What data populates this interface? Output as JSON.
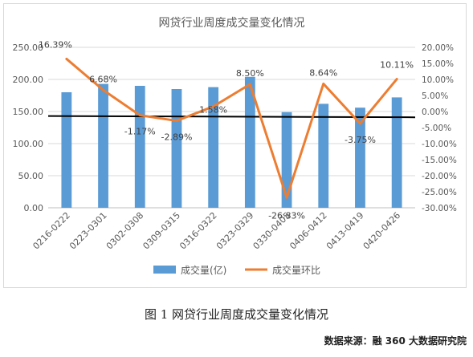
{
  "chart_data": {
    "type": "bar",
    "title": "网贷行业周度成交量变化情况",
    "categories": [
      "0216-0222",
      "0223-0301",
      "0302-0308",
      "0309-0315",
      "0316-0322",
      "0323-0329",
      "0330-0405",
      "0406-0412",
      "0413-0419",
      "0420-0426"
    ],
    "series": [
      {
        "name": "成交量(亿)",
        "type": "bar",
        "axis": "left",
        "color": "#5b9bd5",
        "values": [
          180,
          193,
          190,
          185,
          188,
          204,
          149,
          162,
          156,
          172
        ]
      },
      {
        "name": "成交量环比",
        "type": "line",
        "axis": "right",
        "color": "#ed7d31",
        "values": [
          16.39,
          6.68,
          -1.17,
          -2.89,
          1.58,
          8.5,
          -26.83,
          8.64,
          -3.75,
          10.11
        ],
        "labels": [
          "16.39%",
          "6.68%",
          "-1.17%",
          "-2.89%",
          "1.58%",
          "8.50%",
          "-26.83%",
          "8.64%",
          "-3.75%",
          "10.11%"
        ]
      }
    ],
    "y_left": {
      "min": 0,
      "max": 250,
      "ticks": [
        "0.00",
        "50.00",
        "100.00",
        "150.00",
        "200.00",
        "250.00"
      ]
    },
    "y_right": {
      "min": -30,
      "max": 20,
      "ticks": [
        "-30.00%",
        "-25.00%",
        "-20.00%",
        "-15.00%",
        "-10.00%",
        "-5.00%",
        "0.00%",
        "5.00%",
        "10.00%",
        "15.00%",
        "20.00%"
      ]
    },
    "trend_line": {
      "color": "#000000",
      "from": 143,
      "to": 141
    },
    "grid": true,
    "legend": "bottom"
  },
  "caption": "图 1  网贷行业周度成交量变化情况",
  "source": "数据来源：融 360 大数据研究院"
}
